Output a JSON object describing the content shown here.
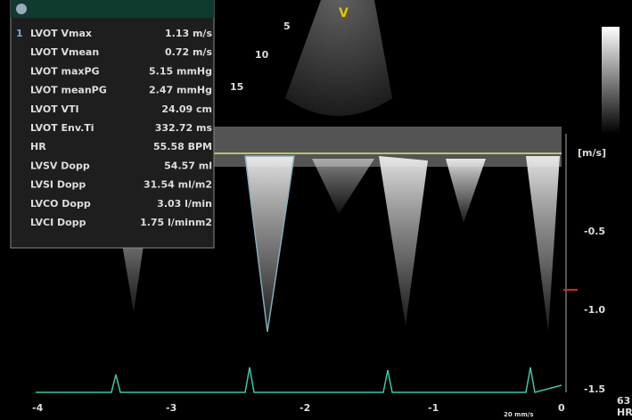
{
  "panel": {
    "index": "1",
    "rows": [
      {
        "label": "LVOT Vmax",
        "value": "1.13 m/s"
      },
      {
        "label": "LVOT Vmean",
        "value": "0.72 m/s"
      },
      {
        "label": "LVOT maxPG",
        "value": "5.15 mmHg"
      },
      {
        "label": "LVOT meanPG",
        "value": "2.47 mmHg"
      },
      {
        "label": "LVOT VTI",
        "value": "24.09 cm"
      },
      {
        "label": "LVOT Env.Ti",
        "value": "332.72 ms"
      },
      {
        "label": "HR",
        "value": "55.58 BPM"
      },
      {
        "label": "LVSV Dopp",
        "value": "54.57 ml"
      },
      {
        "label": "LVSI Dopp",
        "value": "31.54 ml/m2"
      },
      {
        "label": "LVCO Dopp",
        "value": "3.03 l/min"
      },
      {
        "label": "LVCI Dopp",
        "value": "1.75 l/minm2"
      }
    ]
  },
  "echo": {
    "depth_labels": [
      "5",
      "10",
      "15"
    ],
    "marker": "V"
  },
  "doppler": {
    "unit": "[m/s]",
    "scale_labels": [
      "-0.5",
      "-1.0",
      "-1.5"
    ],
    "time_labels": [
      "-4",
      "-3",
      "-2",
      "-1",
      "0"
    ],
    "sweep": "20 mm/s",
    "hr_value": "63",
    "hr_label": "HR"
  }
}
